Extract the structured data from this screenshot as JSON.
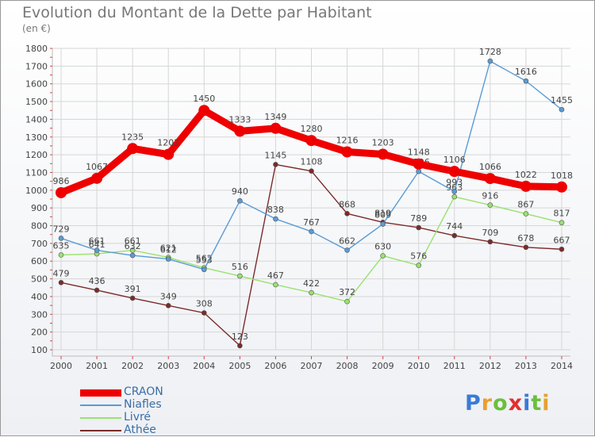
{
  "chart_data": {
    "type": "line",
    "title": "Evolution du Montant de la Dette par Habitant",
    "subtitle": "(en €)",
    "x": [
      "2000",
      "2001",
      "2002",
      "2003",
      "2004",
      "2005",
      "2006",
      "2007",
      "2008",
      "2009",
      "2010",
      "2011",
      "2012",
      "2013",
      "2014"
    ],
    "ylim": [
      100,
      1800
    ],
    "yticks": [
      100,
      200,
      300,
      400,
      500,
      600,
      700,
      800,
      900,
      1000,
      1100,
      1200,
      1300,
      1400,
      1500,
      1600,
      1700,
      1800
    ],
    "grid": true,
    "legend_position": "bottom-left",
    "series": [
      {
        "name": "CRAON",
        "color": "#ee0000",
        "values": [
          986,
          1067,
          1235,
          1202,
          1450,
          1333,
          1349,
          1280,
          1216,
          1203,
          1148,
          1106,
          1066,
          1022,
          1018
        ]
      },
      {
        "name": "Niafles",
        "color": "#5b9bd5",
        "values": [
          729,
          661,
          632,
          612,
          553,
          940,
          838,
          767,
          662,
          809,
          1106,
          993,
          1728,
          1616,
          1455
        ]
      },
      {
        "name": "Livré",
        "color": "#99e26e",
        "values": [
          635,
          641,
          661,
          621,
          562,
          516,
          467,
          422,
          372,
          630,
          576,
          963,
          916,
          867,
          817
        ]
      },
      {
        "name": "Athée",
        "color": "#7b2b2b",
        "values": [
          479,
          436,
          391,
          349,
          308,
          123,
          1145,
          1108,
          868,
          819,
          789,
          744,
          709,
          678,
          667
        ]
      }
    ]
  },
  "brand": {
    "letters": [
      "P",
      "r",
      "o",
      "x",
      "i",
      "t",
      "i"
    ],
    "colors": [
      "#3a7bd5",
      "#e8a030",
      "#6cbf3c",
      "#e03030",
      "#3a7bd5",
      "#6cbf3c",
      "#e8a030"
    ]
  }
}
